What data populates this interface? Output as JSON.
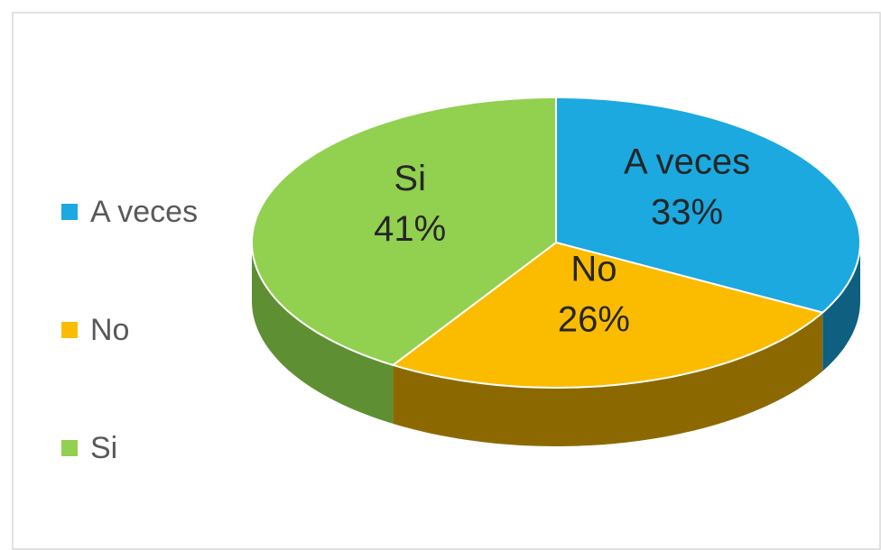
{
  "chart_data": {
    "type": "pie3d",
    "categories": [
      "A veces",
      "No",
      "Si"
    ],
    "values": [
      33,
      26,
      41
    ],
    "value_labels": [
      "33%",
      "26%",
      "41%"
    ],
    "colors": [
      "#1ba9e0",
      "#fbbc00",
      "#92d050"
    ],
    "side_colors": [
      "#0e5f80",
      "#8c6900",
      "#5f8f33"
    ],
    "legend": "left"
  }
}
